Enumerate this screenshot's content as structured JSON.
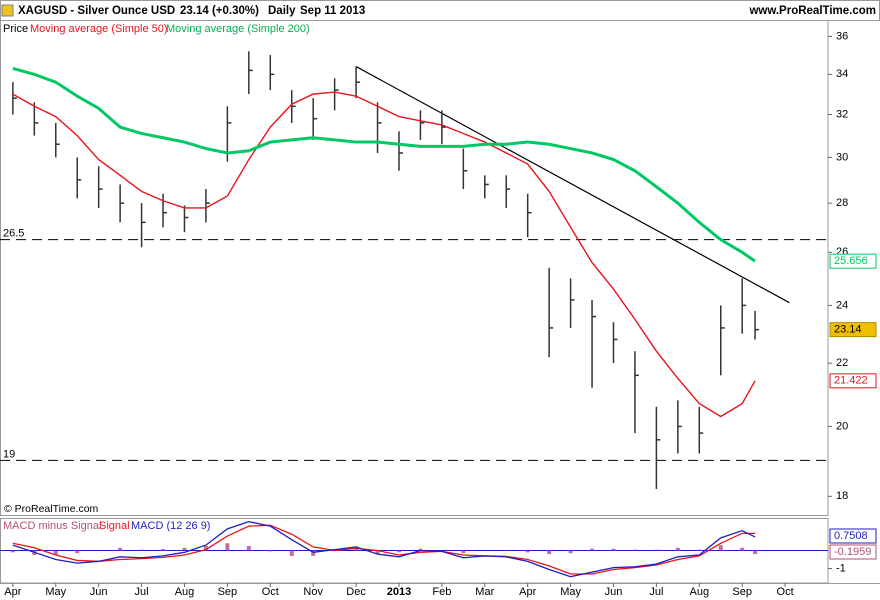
{
  "header": {
    "symbol": "XAGUSD - Silver Ounce USD",
    "quote": "23.14 (+0.30%)",
    "period": "Daily",
    "date": "Sep 11 2013",
    "site": "www.ProRealTime.com"
  },
  "copyright": "© ProRealTime.com",
  "chart_data": [
    {
      "type": "ohlc",
      "log_scale": true,
      "x": [
        0,
        0.5,
        1,
        1.5,
        2,
        2.5,
        3,
        3.5,
        4,
        4.5,
        5,
        5.5,
        6,
        6.5,
        7,
        7.5,
        8,
        8.5,
        9,
        9.5,
        10,
        10.5,
        11,
        11.5,
        12,
        12.5,
        13,
        13.5,
        14,
        14.5,
        15,
        15.5,
        16,
        16.5,
        17,
        17.3
      ],
      "xlim": [
        -0.3,
        19.0
      ],
      "xticks": [
        {
          "value": 0,
          "label": "Apr"
        },
        {
          "value": 1,
          "label": "May"
        },
        {
          "value": 2,
          "label": "Jun"
        },
        {
          "value": 3,
          "label": "Jul"
        },
        {
          "value": 4,
          "label": "Aug"
        },
        {
          "value": 5,
          "label": "Sep"
        },
        {
          "value": 6,
          "label": "Oct"
        },
        {
          "value": 7,
          "label": "Nov"
        },
        {
          "value": 8,
          "label": "Dec"
        },
        {
          "value": 9,
          "label": "2013",
          "bold": true
        },
        {
          "value": 10,
          "label": "Feb"
        },
        {
          "value": 11,
          "label": "Mar"
        },
        {
          "value": 12,
          "label": "Apr"
        },
        {
          "value": 13,
          "label": "May"
        },
        {
          "value": 14,
          "label": "Jun"
        },
        {
          "value": 15,
          "label": "Jul"
        },
        {
          "value": 16,
          "label": "Aug"
        },
        {
          "value": 17,
          "label": "Sep"
        },
        {
          "value": 18,
          "label": "Oct"
        }
      ],
      "ylim": [
        17.5,
        36.9
      ],
      "yticks": [
        18,
        20,
        22,
        24,
        26,
        28,
        30,
        32,
        34,
        36
      ],
      "price": {
        "name": "Price",
        "color": "#333333",
        "high": [
          33.6,
          32.6,
          31.6,
          30.0,
          29.6,
          28.8,
          28.0,
          28.4,
          27.9,
          28.6,
          32.4,
          35.2,
          35.0,
          33.2,
          32.8,
          33.8,
          34.4,
          32.6,
          31.2,
          32.2,
          32.2,
          30.4,
          29.2,
          29.2,
          28.4,
          25.4,
          25.0,
          24.2,
          23.4,
          22.4,
          20.6,
          20.8,
          20.6,
          24.0,
          25.0,
          23.8
        ],
        "low": [
          32.0,
          31.0,
          30.0,
          28.2,
          27.8,
          27.2,
          26.2,
          27.0,
          26.8,
          27.2,
          29.8,
          33.0,
          33.2,
          31.6,
          30.8,
          32.2,
          32.8,
          30.2,
          29.4,
          30.8,
          30.6,
          28.6,
          28.2,
          27.8,
          26.6,
          22.2,
          23.2,
          21.2,
          22.0,
          19.8,
          18.2,
          19.2,
          19.2,
          21.6,
          23.0,
          22.8
        ],
        "close": [
          32.8,
          31.6,
          30.6,
          29.0,
          28.6,
          28.0,
          27.2,
          27.6,
          27.4,
          28.0,
          31.6,
          34.2,
          34.0,
          32.4,
          31.8,
          33.2,
          33.6,
          31.6,
          30.2,
          31.6,
          31.4,
          29.4,
          28.8,
          28.6,
          27.6,
          23.2,
          24.2,
          23.6,
          22.8,
          21.6,
          19.6,
          20.0,
          19.8,
          23.2,
          24.0,
          23.14
        ]
      },
      "series": [
        {
          "name": "Moving average (Simple 50)",
          "color": "#e8141c",
          "values": [
            33.0,
            32.4,
            31.9,
            31.0,
            29.9,
            29.2,
            28.5,
            28.1,
            27.8,
            27.8,
            28.3,
            29.9,
            31.4,
            32.5,
            33.0,
            33.1,
            32.9,
            32.4,
            31.9,
            31.7,
            31.5,
            31.1,
            30.7,
            30.2,
            29.7,
            28.5,
            27.0,
            25.6,
            24.6,
            23.5,
            22.4,
            21.5,
            20.7,
            20.3,
            20.7,
            21.422
          ]
        },
        {
          "name": "Moving average (Simple 200)",
          "color": "#00c864",
          "values": [
            34.3,
            34.0,
            33.6,
            32.9,
            32.3,
            31.4,
            31.1,
            30.9,
            30.7,
            30.4,
            30.2,
            30.3,
            30.7,
            30.8,
            30.9,
            30.8,
            30.7,
            30.7,
            30.6,
            30.5,
            30.5,
            30.5,
            30.6,
            30.6,
            30.7,
            30.6,
            30.4,
            30.2,
            29.9,
            29.4,
            28.7,
            28.0,
            27.2,
            26.5,
            26.0,
            25.656
          ]
        }
      ],
      "levels": [
        26.5,
        19
      ],
      "trendline": {
        "x": [
          8.0,
          18.1
        ],
        "values": [
          34.4,
          24.1
        ]
      }
    },
    {
      "type": "macd",
      "ylim": [
        -1.8,
        1.8
      ],
      "yticks": [
        -1
      ],
      "series": [
        {
          "name": "MACD minus Signal",
          "color": "#b05070",
          "values": [
            -0.1,
            -0.25,
            -0.25,
            -0.15,
            0,
            0.15,
            0.05,
            0.08,
            0.15,
            0.25,
            0.4,
            0.25,
            -0.05,
            -0.3,
            -0.3,
            0.05,
            0.08,
            -0.2,
            -0.1,
            0.1,
            0,
            -0.15,
            0,
            -0.02,
            -0.1,
            -0.2,
            -0.15,
            0.1,
            0.1,
            0.05,
            0.05,
            0.15,
            0.05,
            0.3,
            0.15,
            -0.1959
          ]
        },
        {
          "name": "Signal",
          "color": "#e8141c",
          "values": [
            0.4,
            0.15,
            -0.25,
            -0.55,
            -0.6,
            -0.5,
            -0.45,
            -0.38,
            -0.25,
            0.05,
            0.8,
            1.35,
            1.4,
            0.9,
            0.2,
            0,
            0.12,
            0,
            -0.25,
            -0.1,
            -0.05,
            -0.25,
            -0.3,
            -0.33,
            -0.5,
            -0.85,
            -1.3,
            -1.3,
            -1.05,
            -0.95,
            -0.8,
            -0.5,
            -0.3,
            0.4,
            0.95,
            0.9467
          ]
        },
        {
          "name": "MACD (12 26 9)",
          "color": "#1e1ebe",
          "values": [
            0.3,
            -0.1,
            -0.5,
            -0.7,
            -0.6,
            -0.35,
            -0.4,
            -0.3,
            -0.1,
            0.3,
            1.2,
            1.6,
            1.35,
            0.6,
            -0.1,
            0.05,
            0.2,
            -0.2,
            -0.35,
            0,
            -0.05,
            -0.4,
            -0.3,
            -0.35,
            -0.6,
            -1.05,
            -1.45,
            -1.2,
            -0.95,
            -0.9,
            -0.75,
            -0.35,
            -0.25,
            0.7,
            1.1,
            0.7508
          ]
        }
      ]
    }
  ]
}
